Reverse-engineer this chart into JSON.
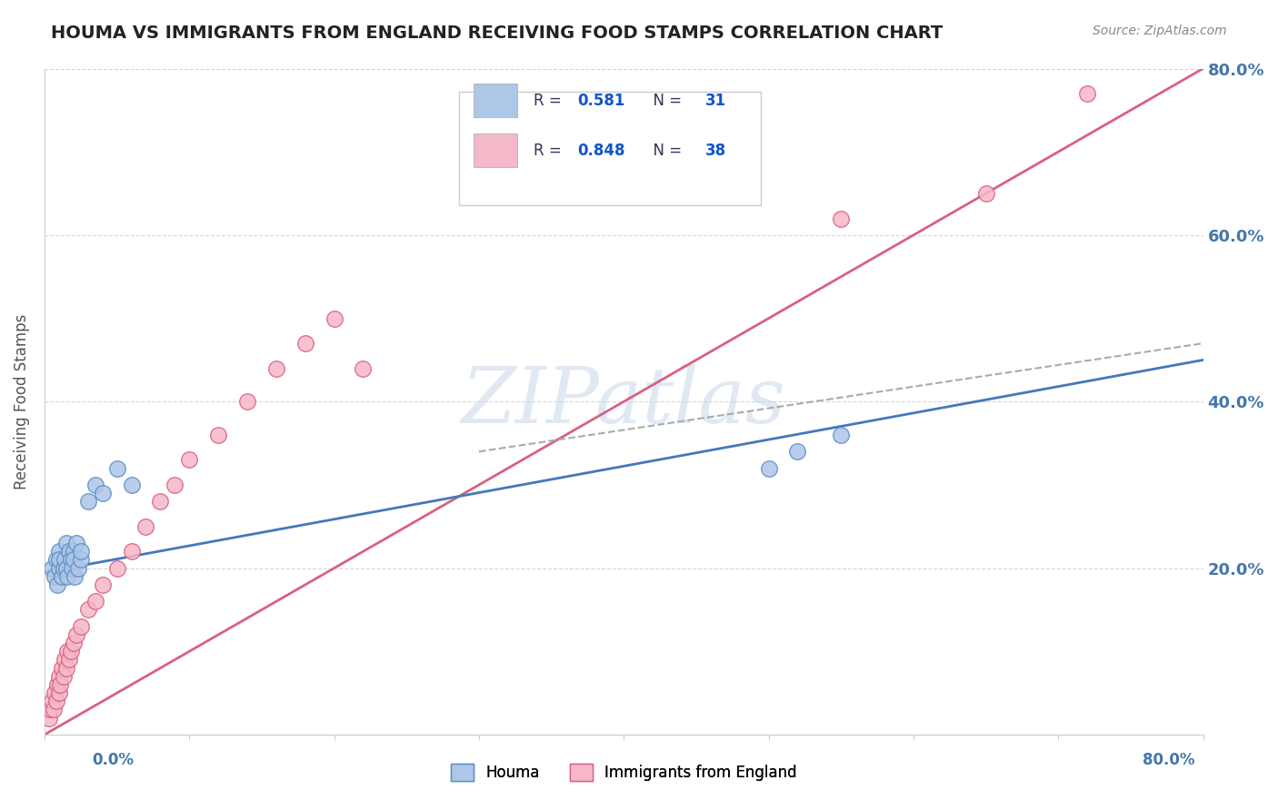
{
  "title": "HOUMA VS IMMIGRANTS FROM ENGLAND RECEIVING FOOD STAMPS CORRELATION CHART",
  "source": "Source: ZipAtlas.com",
  "ylabel": "Receiving Food Stamps",
  "watermark": "ZIPatlas",
  "xmin": 0.0,
  "xmax": 0.8,
  "ymin": 0.0,
  "ymax": 0.8,
  "yticks": [
    0.0,
    0.2,
    0.4,
    0.6,
    0.8
  ],
  "ytick_labels": [
    "",
    "20.0%",
    "40.0%",
    "60.0%",
    "80.0%"
  ],
  "legend_blue_Rval": "0.581",
  "legend_blue_Nval": "31",
  "legend_pink_Rval": "0.848",
  "legend_pink_Nval": "38",
  "houma_color": "#aec6e8",
  "houma_edge_color": "#5b8ec4",
  "houma_line_color": "#4477bb",
  "england_color": "#f5b8c8",
  "england_edge_color": "#d96080",
  "england_line_color": "#d96080",
  "dashed_line_color": "#aaaaaa",
  "background_color": "#ffffff",
  "grid_color": "#cccccc",
  "title_color": "#222222",
  "axis_label_color": "#4477aa",
  "houma_scatter_x": [
    0.005,
    0.007,
    0.008,
    0.009,
    0.01,
    0.01,
    0.01,
    0.012,
    0.013,
    0.014,
    0.015,
    0.015,
    0.016,
    0.017,
    0.018,
    0.019,
    0.02,
    0.02,
    0.021,
    0.022,
    0.023,
    0.025,
    0.025,
    0.03,
    0.035,
    0.04,
    0.05,
    0.06,
    0.5,
    0.52,
    0.55
  ],
  "houma_scatter_y": [
    0.2,
    0.19,
    0.21,
    0.18,
    0.2,
    0.22,
    0.21,
    0.19,
    0.2,
    0.21,
    0.2,
    0.23,
    0.19,
    0.22,
    0.21,
    0.2,
    0.22,
    0.21,
    0.19,
    0.23,
    0.2,
    0.21,
    0.22,
    0.28,
    0.3,
    0.29,
    0.32,
    0.3,
    0.32,
    0.34,
    0.36
  ],
  "england_scatter_x": [
    0.003,
    0.004,
    0.005,
    0.006,
    0.007,
    0.008,
    0.009,
    0.01,
    0.01,
    0.011,
    0.012,
    0.013,
    0.014,
    0.015,
    0.016,
    0.017,
    0.018,
    0.02,
    0.022,
    0.025,
    0.03,
    0.035,
    0.04,
    0.05,
    0.06,
    0.07,
    0.08,
    0.09,
    0.1,
    0.12,
    0.14,
    0.16,
    0.18,
    0.2,
    0.22,
    0.55,
    0.65,
    0.72
  ],
  "england_scatter_y": [
    0.02,
    0.03,
    0.04,
    0.03,
    0.05,
    0.04,
    0.06,
    0.05,
    0.07,
    0.06,
    0.08,
    0.07,
    0.09,
    0.08,
    0.1,
    0.09,
    0.1,
    0.11,
    0.12,
    0.13,
    0.15,
    0.16,
    0.18,
    0.2,
    0.22,
    0.25,
    0.28,
    0.3,
    0.33,
    0.36,
    0.4,
    0.44,
    0.47,
    0.5,
    0.44,
    0.62,
    0.65,
    0.77
  ],
  "houma_trend_x0": 0.0,
  "houma_trend_y0": 0.195,
  "houma_trend_x1": 0.8,
  "houma_trend_y1": 0.45,
  "england_trend_x0": 0.0,
  "england_trend_y0": 0.0,
  "england_trend_x1": 0.8,
  "england_trend_y1": 0.8,
  "dashed_trend_x0": 0.3,
  "dashed_trend_y0": 0.34,
  "dashed_trend_x1": 0.8,
  "dashed_trend_y1": 0.47
}
